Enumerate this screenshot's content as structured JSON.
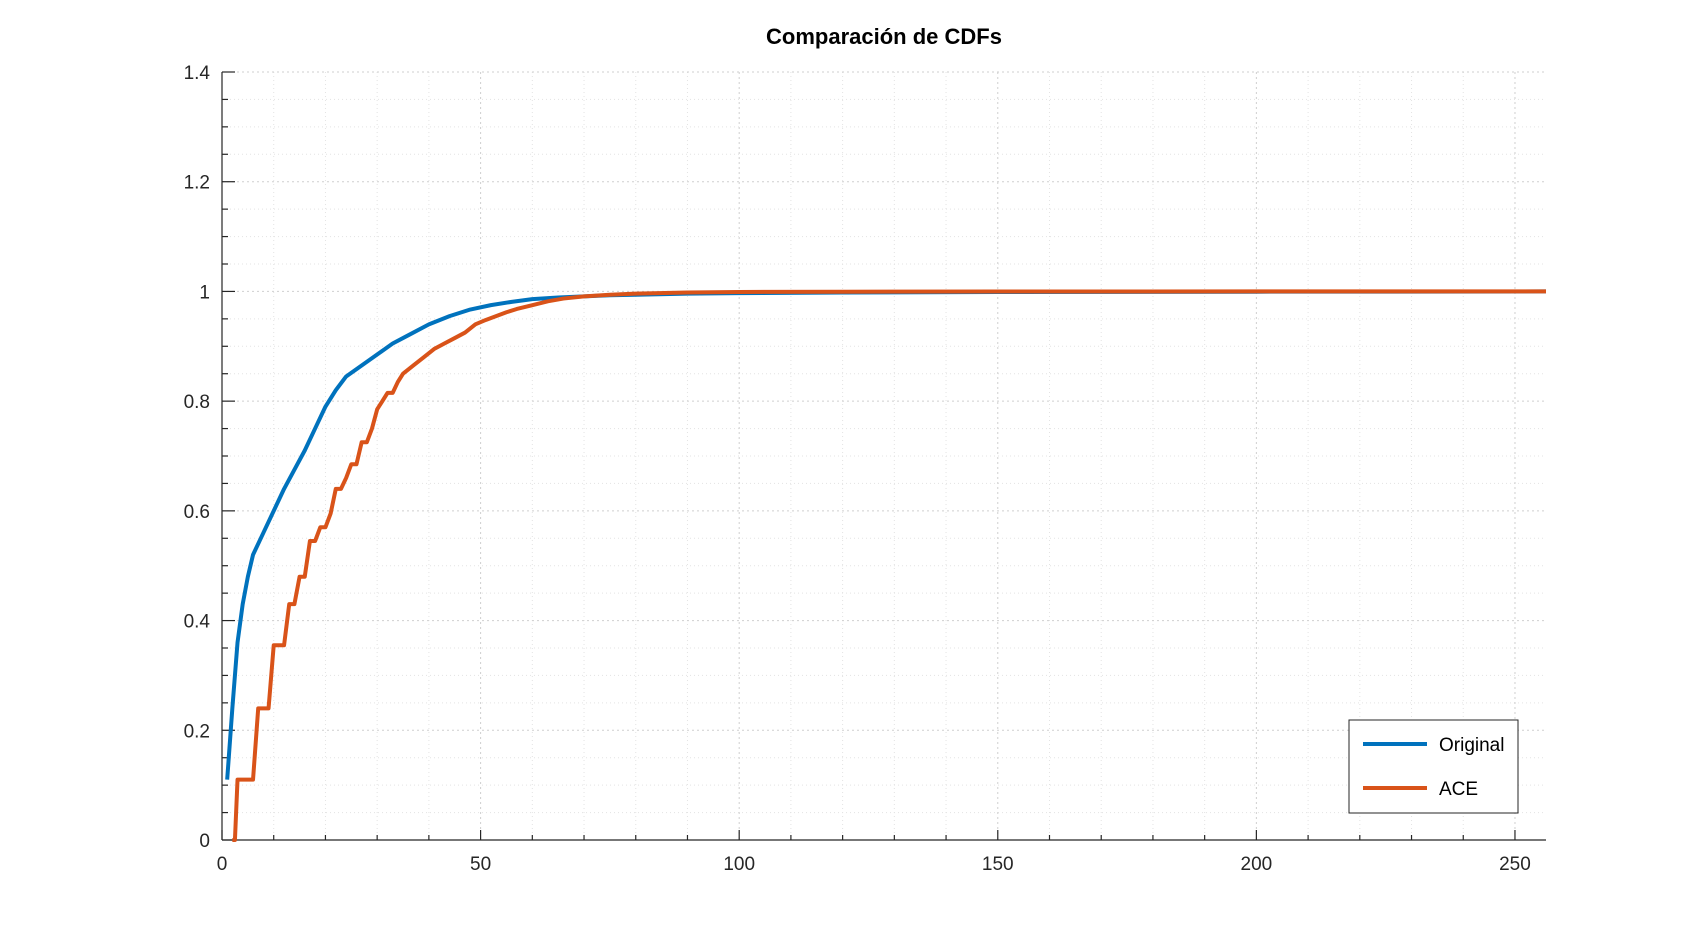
{
  "chart_data": {
    "type": "line",
    "title": "Comparación de CDFs",
    "xlabel": "",
    "ylabel": "",
    "xlim": [
      0,
      256
    ],
    "ylim": [
      0,
      1.4
    ],
    "xticks": [
      0,
      50,
      100,
      150,
      200,
      250
    ],
    "xtick_labels": [
      "0",
      "50",
      "100",
      "150",
      "200",
      "250"
    ],
    "yticks": [
      0,
      0.2,
      0.4,
      0.6,
      0.8,
      1,
      1.2,
      1.4
    ],
    "ytick_labels": [
      "0",
      "0.2",
      "0.4",
      "0.6",
      "0.8",
      "1",
      "1.2",
      "1.4"
    ],
    "grid": true,
    "minor_grid": true,
    "legend_position": "bottom-right",
    "series": [
      {
        "name": "Original",
        "color": "#0072BD",
        "x": [
          1,
          2,
          3,
          4,
          5,
          6,
          8,
          10,
          12,
          14,
          16,
          18,
          20,
          22,
          24,
          27,
          30,
          33,
          36,
          40,
          44,
          48,
          52,
          56,
          60,
          65,
          70,
          75,
          80,
          90,
          100,
          120,
          150,
          200,
          256
        ],
        "y": [
          0.11,
          0.24,
          0.36,
          0.43,
          0.48,
          0.52,
          0.56,
          0.6,
          0.64,
          0.675,
          0.71,
          0.75,
          0.79,
          0.82,
          0.845,
          0.865,
          0.885,
          0.905,
          0.92,
          0.94,
          0.955,
          0.967,
          0.975,
          0.981,
          0.986,
          0.989,
          0.991,
          0.993,
          0.994,
          0.996,
          0.997,
          0.998,
          0.999,
          0.9995,
          1.0
        ]
      },
      {
        "name": "ACE",
        "color": "#D95319",
        "x": [
          2,
          2.5,
          3,
          4,
          5,
          6,
          7,
          8,
          9,
          10,
          11,
          12,
          13,
          14,
          15,
          16,
          17,
          18,
          19,
          20,
          21,
          22,
          23,
          24,
          25,
          26,
          27,
          28,
          29,
          30,
          31,
          32,
          33,
          34,
          35,
          37,
          39,
          41,
          43,
          45,
          47,
          49,
          51,
          53,
          55,
          57,
          60,
          63,
          66,
          70,
          75,
          80,
          90,
          100,
          120,
          150,
          200,
          256
        ],
        "y": [
          0.0,
          0.0,
          0.11,
          0.11,
          0.11,
          0.11,
          0.24,
          0.24,
          0.24,
          0.355,
          0.355,
          0.355,
          0.43,
          0.43,
          0.48,
          0.48,
          0.545,
          0.545,
          0.57,
          0.57,
          0.595,
          0.64,
          0.64,
          0.66,
          0.685,
          0.685,
          0.725,
          0.725,
          0.75,
          0.785,
          0.8,
          0.815,
          0.815,
          0.835,
          0.85,
          0.865,
          0.88,
          0.895,
          0.905,
          0.915,
          0.925,
          0.94,
          0.948,
          0.955,
          0.962,
          0.968,
          0.975,
          0.982,
          0.987,
          0.991,
          0.994,
          0.996,
          0.998,
          0.999,
          0.9995,
          0.9998,
          1.0,
          1.0
        ]
      }
    ]
  }
}
